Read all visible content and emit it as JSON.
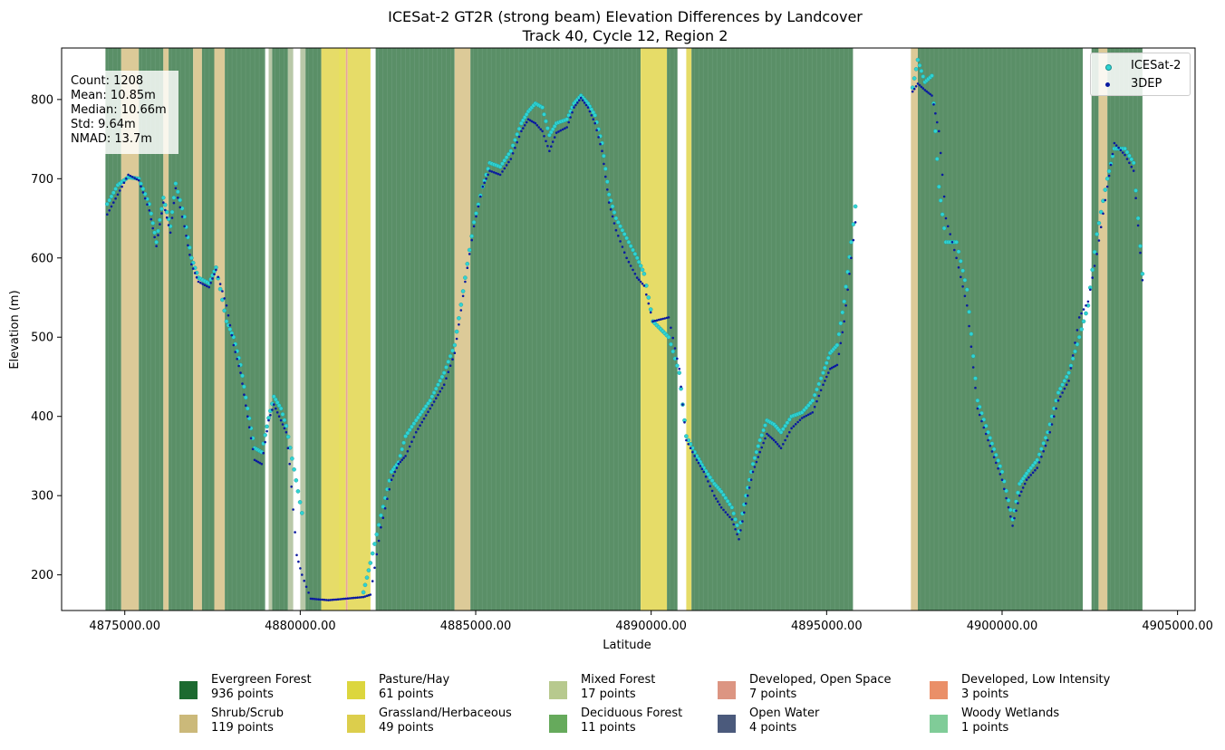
{
  "chart_data": {
    "type": "scatter",
    "title": "ICESat-2 GT2R (strong beam) Elevation Differences by Landcover",
    "subtitle": "Track 40, Cycle 12, Region 2",
    "xlabel": "Latitude",
    "ylabel": "Elevation (m)",
    "xlim": [
      4873200,
      4905500
    ],
    "ylim": [
      155,
      865
    ],
    "xticks": [
      4875000,
      4880000,
      4885000,
      4890000,
      4895000,
      4900000,
      4905000
    ],
    "xtick_labels": [
      "4875000.00",
      "4880000.00",
      "4885000.00",
      "4890000.00",
      "4895000.00",
      "4900000.00",
      "4905000.00"
    ],
    "yticks": [
      200,
      300,
      400,
      500,
      600,
      700,
      800
    ],
    "ytick_labels": [
      "200",
      "300",
      "400",
      "500",
      "600",
      "700",
      "800"
    ],
    "grid": false,
    "legend_position": "top-right",
    "series": [
      {
        "name": "ICESat-2",
        "color": "#2fd3d3",
        "points": [
          [
            4874500,
            668
          ],
          [
            4874800,
            692
          ],
          [
            4875100,
            702
          ],
          [
            4875400,
            700
          ],
          [
            4875700,
            668
          ],
          [
            4875900,
            620
          ],
          [
            4876100,
            676
          ],
          [
            4876300,
            640
          ],
          [
            4876450,
            694
          ],
          [
            4876700,
            652
          ],
          [
            4876900,
            600
          ],
          [
            4877100,
            575
          ],
          [
            4877400,
            568
          ],
          [
            4877600,
            588
          ],
          [
            4877900,
            520
          ],
          [
            4878100,
            500
          ],
          [
            4878300,
            465
          ],
          [
            4878500,
            410
          ],
          [
            4878700,
            360
          ],
          [
            4878900,
            355
          ],
          [
            4879100,
            398
          ],
          [
            4879250,
            425
          ],
          [
            4879450,
            410
          ],
          [
            4879600,
            388
          ],
          [
            4880050,
            278
          ],
          [
            4881800,
            178
          ],
          [
            4882000,
            215
          ],
          [
            4882300,
            275
          ],
          [
            4882600,
            330
          ],
          [
            4882800,
            342
          ],
          [
            4883000,
            375
          ],
          [
            4883300,
            395
          ],
          [
            4883700,
            420
          ],
          [
            4884100,
            455
          ],
          [
            4884400,
            490
          ],
          [
            4884700,
            575
          ],
          [
            4884950,
            645
          ],
          [
            4885200,
            690
          ],
          [
            4885400,
            720
          ],
          [
            4885700,
            715
          ],
          [
            4886000,
            735
          ],
          [
            4886300,
            770
          ],
          [
            4886500,
            785
          ],
          [
            4886700,
            795
          ],
          [
            4886900,
            790
          ],
          [
            4887100,
            755
          ],
          [
            4887300,
            770
          ],
          [
            4887600,
            775
          ],
          [
            4887800,
            795
          ],
          [
            4888000,
            805
          ],
          [
            4888200,
            795
          ],
          [
            4888400,
            780
          ],
          [
            4888600,
            745
          ],
          [
            4888800,
            680
          ],
          [
            4889000,
            650
          ],
          [
            4889300,
            625
          ],
          [
            4889600,
            600
          ],
          [
            4889800,
            580
          ],
          [
            4890050,
            520
          ],
          [
            4890500,
            500
          ],
          [
            4890800,
            455
          ],
          [
            4891000,
            375
          ],
          [
            4891300,
            350
          ],
          [
            4891500,
            335
          ],
          [
            4891800,
            315
          ],
          [
            4892000,
            305
          ],
          [
            4892300,
            285
          ],
          [
            4892500,
            255
          ],
          [
            4892700,
            300
          ],
          [
            4892900,
            340
          ],
          [
            4893100,
            370
          ],
          [
            4893300,
            395
          ],
          [
            4893500,
            390
          ],
          [
            4893700,
            380
          ],
          [
            4894000,
            400
          ],
          [
            4894300,
            405
          ],
          [
            4894600,
            420
          ],
          [
            4894900,
            455
          ],
          [
            4895100,
            480
          ],
          [
            4895300,
            490
          ],
          [
            4895500,
            545
          ],
          [
            4895700,
            620
          ],
          [
            4895820,
            665
          ],
          [
            4897450,
            815
          ],
          [
            4897600,
            850
          ],
          [
            4897800,
            822
          ],
          [
            4898000,
            830
          ],
          [
            4898200,
            690
          ],
          [
            4898400,
            620
          ],
          [
            4898700,
            620
          ],
          [
            4899000,
            560
          ],
          [
            4899300,
            420
          ],
          [
            4899600,
            380
          ],
          [
            4900000,
            330
          ],
          [
            4900300,
            270
          ],
          [
            4900500,
            315
          ],
          [
            4900700,
            328
          ],
          [
            4901000,
            345
          ],
          [
            4901300,
            380
          ],
          [
            4901600,
            430
          ],
          [
            4901900,
            455
          ],
          [
            4902200,
            500
          ],
          [
            4902450,
            540
          ],
          [
            4902700,
            630
          ],
          [
            4903000,
            700
          ],
          [
            4903200,
            738
          ],
          [
            4903500,
            738
          ],
          [
            4903750,
            720
          ],
          [
            4904000,
            580
          ]
        ]
      },
      {
        "name": "3DEP",
        "color": "#0a1aa0",
        "points": [
          [
            4874500,
            655
          ],
          [
            4874800,
            680
          ],
          [
            4875100,
            705
          ],
          [
            4875400,
            698
          ],
          [
            4875700,
            660
          ],
          [
            4875900,
            615
          ],
          [
            4876100,
            670
          ],
          [
            4876300,
            632
          ],
          [
            4876450,
            688
          ],
          [
            4876700,
            640
          ],
          [
            4876900,
            592
          ],
          [
            4877100,
            570
          ],
          [
            4877400,
            563
          ],
          [
            4877600,
            585
          ],
          [
            4877900,
            540
          ],
          [
            4878100,
            490
          ],
          [
            4878300,
            455
          ],
          [
            4878500,
            400
          ],
          [
            4878700,
            345
          ],
          [
            4878900,
            340
          ],
          [
            4879100,
            395
          ],
          [
            4879250,
            415
          ],
          [
            4879450,
            395
          ],
          [
            4879600,
            380
          ],
          [
            4879700,
            340
          ],
          [
            4879900,
            225
          ],
          [
            4880050,
            200
          ],
          [
            4880300,
            170
          ],
          [
            4880800,
            168
          ],
          [
            4881300,
            170
          ],
          [
            4881800,
            172
          ],
          [
            4882000,
            175
          ],
          [
            4882300,
            260
          ],
          [
            4882600,
            320
          ],
          [
            4882800,
            340
          ],
          [
            4883000,
            350
          ],
          [
            4883300,
            380
          ],
          [
            4883700,
            410
          ],
          [
            4884100,
            440
          ],
          [
            4884400,
            480
          ],
          [
            4884700,
            570
          ],
          [
            4884950,
            640
          ],
          [
            4885200,
            690
          ],
          [
            4885400,
            710
          ],
          [
            4885700,
            705
          ],
          [
            4886000,
            725
          ],
          [
            4886300,
            760
          ],
          [
            4886500,
            775
          ],
          [
            4886700,
            770
          ],
          [
            4886900,
            760
          ],
          [
            4887100,
            735
          ],
          [
            4887300,
            758
          ],
          [
            4887600,
            765
          ],
          [
            4887800,
            790
          ],
          [
            4888000,
            802
          ],
          [
            4888200,
            790
          ],
          [
            4888400,
            770
          ],
          [
            4888600,
            735
          ],
          [
            4888800,
            670
          ],
          [
            4889000,
            635
          ],
          [
            4889300,
            600
          ],
          [
            4889600,
            575
          ],
          [
            4889800,
            565
          ],
          [
            4890050,
            520
          ],
          [
            4890500,
            525
          ],
          [
            4890800,
            460
          ],
          [
            4891000,
            370
          ],
          [
            4891300,
            345
          ],
          [
            4891500,
            330
          ],
          [
            4891800,
            300
          ],
          [
            4892000,
            285
          ],
          [
            4892300,
            270
          ],
          [
            4892500,
            245
          ],
          [
            4892700,
            290
          ],
          [
            4892900,
            330
          ],
          [
            4893100,
            355
          ],
          [
            4893300,
            378
          ],
          [
            4893500,
            370
          ],
          [
            4893700,
            360
          ],
          [
            4894000,
            385
          ],
          [
            4894300,
            398
          ],
          [
            4894600,
            405
          ],
          [
            4894900,
            440
          ],
          [
            4895100,
            460
          ],
          [
            4895300,
            465
          ],
          [
            4895500,
            520
          ],
          [
            4895700,
            600
          ],
          [
            4895820,
            645
          ],
          [
            4897450,
            810
          ],
          [
            4897600,
            820
          ],
          [
            4897800,
            812
          ],
          [
            4898000,
            805
          ],
          [
            4898200,
            760
          ],
          [
            4898400,
            650
          ],
          [
            4898700,
            600
          ],
          [
            4899000,
            540
          ],
          [
            4899300,
            410
          ],
          [
            4899600,
            370
          ],
          [
            4900000,
            320
          ],
          [
            4900300,
            262
          ],
          [
            4900500,
            300
          ],
          [
            4900700,
            320
          ],
          [
            4901000,
            335
          ],
          [
            4901300,
            370
          ],
          [
            4901600,
            420
          ],
          [
            4901900,
            445
          ],
          [
            4902200,
            525
          ],
          [
            4902450,
            545
          ],
          [
            4902700,
            605
          ],
          [
            4903000,
            690
          ],
          [
            4903200,
            745
          ],
          [
            4903500,
            730
          ],
          [
            4903750,
            710
          ],
          [
            4904000,
            572
          ]
        ]
      }
    ],
    "landcover_bands": [
      {
        "start": 4874450,
        "end": 4874900,
        "class": "evergreen"
      },
      {
        "start": 4874900,
        "end": 4875400,
        "class": "shrub"
      },
      {
        "start": 4875400,
        "end": 4876100,
        "class": "evergreen"
      },
      {
        "start": 4876100,
        "end": 4876250,
        "class": "shrub"
      },
      {
        "start": 4876250,
        "end": 4876950,
        "class": "evergreen"
      },
      {
        "start": 4876950,
        "end": 4877200,
        "class": "shrub"
      },
      {
        "start": 4877200,
        "end": 4877550,
        "class": "evergreen"
      },
      {
        "start": 4877550,
        "end": 4877850,
        "class": "shrub"
      },
      {
        "start": 4877850,
        "end": 4879000,
        "class": "evergreen"
      },
      {
        "start": 4879100,
        "end": 4879200,
        "class": "mixed"
      },
      {
        "start": 4879200,
        "end": 4879650,
        "class": "evergreen"
      },
      {
        "start": 4879650,
        "end": 4879800,
        "class": "mixed"
      },
      {
        "start": 4880000,
        "end": 4880150,
        "class": "mixed"
      },
      {
        "start": 4880150,
        "end": 4880600,
        "class": "evergreen"
      },
      {
        "start": 4880600,
        "end": 4881100,
        "class": "grassland"
      },
      {
        "start": 4881100,
        "end": 4881300,
        "class": "pasture"
      },
      {
        "start": 4881300,
        "end": 4881350,
        "class": "dev_open"
      },
      {
        "start": 4881350,
        "end": 4882000,
        "class": "grassland"
      },
      {
        "start": 4882150,
        "end": 4884400,
        "class": "evergreen"
      },
      {
        "start": 4884400,
        "end": 4884850,
        "class": "shrub"
      },
      {
        "start": 4884850,
        "end": 4889700,
        "class": "evergreen"
      },
      {
        "start": 4889700,
        "end": 4890450,
        "class": "grassland"
      },
      {
        "start": 4890450,
        "end": 4890750,
        "class": "evergreen"
      },
      {
        "start": 4891000,
        "end": 4891150,
        "class": "grassland"
      },
      {
        "start": 4891150,
        "end": 4895750,
        "class": "evergreen"
      },
      {
        "start": 4897400,
        "end": 4897600,
        "class": "shrub"
      },
      {
        "start": 4897600,
        "end": 4902300,
        "class": "evergreen"
      },
      {
        "start": 4902550,
        "end": 4902750,
        "class": "evergreen"
      },
      {
        "start": 4902750,
        "end": 4903000,
        "class": "shrub"
      },
      {
        "start": 4903000,
        "end": 4904000,
        "class": "evergreen"
      }
    ],
    "landcover_legend": [
      {
        "label": "Evergreen Forest",
        "count": "936 points",
        "color": "#1c6a30"
      },
      {
        "label": "Shrub/Scrub",
        "count": "119 points",
        "color": "#cbb97a"
      },
      {
        "label": "Pasture/Hay",
        "count": "61 points",
        "color": "#dcd63e"
      },
      {
        "label": "Grassland/Herbaceous",
        "count": "49 points",
        "color": "#dcce4c"
      },
      {
        "label": "Mixed Forest",
        "count": "17 points",
        "color": "#b7c98e"
      },
      {
        "label": "Deciduous Forest",
        "count": "11 points",
        "color": "#66aa5c"
      },
      {
        "label": "Developed, Open Space",
        "count": "7 points",
        "color": "#dc9582"
      },
      {
        "label": "Open Water",
        "count": "4 points",
        "color": "#4b5a7c"
      },
      {
        "label": "Developed, Low Intensity",
        "count": "3 points",
        "color": "#ea8f68"
      },
      {
        "label": "Woody Wetlands",
        "count": "1 points",
        "color": "#80cc98"
      }
    ],
    "band_colors": {
      "evergreen": "#5a8f67",
      "shrub": "#dcca98",
      "pasture": "#e7e05e",
      "grassland": "#e6dc68",
      "mixed": "#b8c8a8",
      "dev_open": "#e8a49a"
    }
  },
  "stats": {
    "count": "Count: 1208",
    "mean": "Mean: 10.85m",
    "median": "Median: 10.66m",
    "std": "Std: 9.64m",
    "nmad": "NMAD: 13.7m"
  }
}
